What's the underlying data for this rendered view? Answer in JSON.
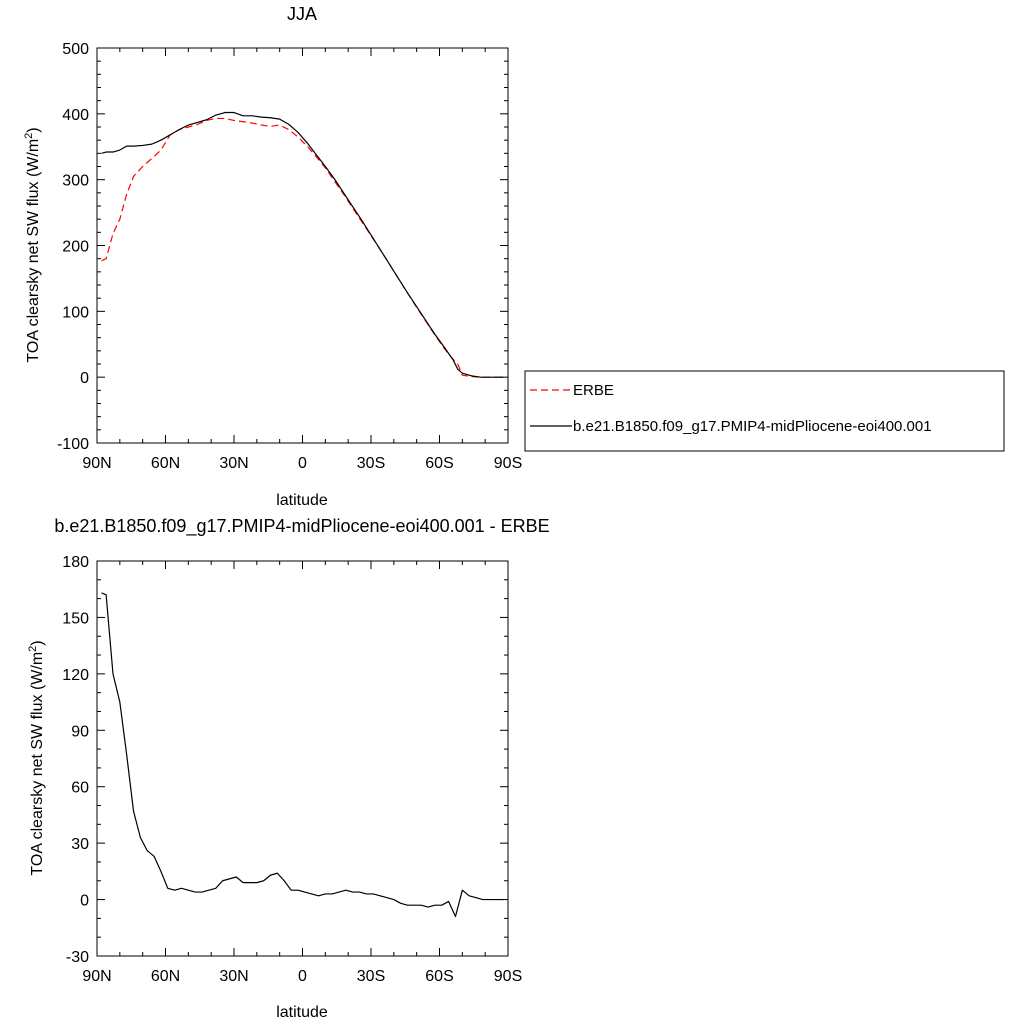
{
  "chart_data": [
    {
      "type": "line",
      "title": "JJA",
      "xlabel": "latitude",
      "ylabel": "TOA clearsky net SW flux (W/m",
      "ylabel_sup": "2",
      "ylabel_end": ")",
      "xlim": [
        90,
        -90
      ],
      "ylim": [
        -100,
        500
      ],
      "x_ticks": [
        90,
        60,
        30,
        0,
        -30,
        -60,
        -90
      ],
      "x_tick_labels": [
        "90N",
        "60N",
        "30N",
        "0",
        "30S",
        "60S",
        "90S"
      ],
      "y_ticks": [
        -100,
        0,
        100,
        200,
        300,
        400,
        500
      ],
      "y_tick_labels": [
        "-100",
        "0",
        "100",
        "200",
        "300",
        "400",
        "500"
      ],
      "grid": false,
      "legend_position": "right",
      "series": [
        {
          "name": "ERBE",
          "color": "#ff0000",
          "dash": "dashed",
          "x": [
            88,
            86,
            83,
            80,
            77,
            74,
            70,
            66,
            62,
            58,
            54,
            50,
            46,
            42,
            38,
            34,
            30,
            26,
            22,
            18,
            14,
            10,
            6,
            2,
            -2,
            -6,
            -10,
            -14,
            -18,
            -22,
            -26,
            -30,
            -34,
            -38,
            -42,
            -46,
            -50,
            -54,
            -58,
            -62,
            -66,
            -68,
            -70,
            -74,
            -78,
            -82,
            -86,
            -88
          ],
          "values": [
            177,
            180,
            218,
            240,
            278,
            305,
            320,
            332,
            345,
            368,
            376,
            380,
            384,
            390,
            393,
            393,
            390,
            388,
            386,
            383,
            381,
            383,
            376,
            365,
            351,
            335,
            318,
            298,
            278,
            257,
            236,
            215,
            194,
            172,
            150,
            128,
            106,
            85,
            64,
            44,
            27,
            20,
            3,
            1,
            0,
            0,
            0,
            0
          ]
        },
        {
          "name": "b.e21.B1850.f09_g17.PMIP4-midPliocene-eoi400.001",
          "color": "#000000",
          "dash": "solid",
          "x": [
            88,
            86,
            83,
            80,
            77,
            74,
            70,
            66,
            62,
            58,
            54,
            50,
            46,
            42,
            38,
            34,
            30,
            26,
            22,
            18,
            14,
            10,
            6,
            2,
            -2,
            -6,
            -10,
            -14,
            -18,
            -22,
            -26,
            -30,
            -34,
            -38,
            -42,
            -46,
            -50,
            -54,
            -58,
            -62,
            -66,
            -68,
            -70,
            -74,
            -78,
            -82,
            -86,
            -88
          ],
          "values": [
            340,
            342,
            342,
            345,
            351,
            351,
            352,
            354,
            360,
            368,
            376,
            383,
            387,
            391,
            398,
            402,
            402,
            397,
            397,
            395,
            394,
            392,
            384,
            372,
            356,
            338,
            320,
            301,
            280,
            259,
            238,
            216,
            194,
            172,
            150,
            128,
            107,
            86,
            65,
            46,
            26,
            12,
            6,
            2,
            0,
            0,
            0,
            0
          ]
        }
      ]
    },
    {
      "type": "line",
      "title": "b.e21.B1850.f09_g17.PMIP4-midPliocene-eoi400.001 - ERBE",
      "xlabel": "latitude",
      "ylabel": "TOA clearsky net SW flux (W/m",
      "ylabel_sup": "2",
      "ylabel_end": ")",
      "xlim": [
        90,
        -90
      ],
      "ylim": [
        -30,
        180
      ],
      "x_ticks": [
        90,
        60,
        30,
        0,
        -30,
        -60,
        -90
      ],
      "x_tick_labels": [
        "90N",
        "60N",
        "30N",
        "0",
        "30S",
        "60S",
        "90S"
      ],
      "y_ticks": [
        -30,
        0,
        30,
        60,
        90,
        120,
        150,
        180
      ],
      "y_tick_labels": [
        "-30",
        "0",
        "30",
        "60",
        "90",
        "120",
        "150",
        "180"
      ],
      "grid": false,
      "series": [
        {
          "color": "#000000",
          "dash": "solid",
          "x": [
            88,
            86,
            83,
            80,
            77,
            74,
            71,
            68,
            65,
            62,
            59,
            56,
            53,
            50,
            47,
            44,
            41,
            38,
            35,
            32,
            29,
            26,
            23,
            20,
            17,
            14,
            11,
            8,
            5,
            2,
            -1,
            -4,
            -7,
            -10,
            -13,
            -16,
            -19,
            -22,
            -25,
            -28,
            -31,
            -34,
            -37,
            -40,
            -43,
            -46,
            -49,
            -52,
            -55,
            -58,
            -61,
            -64,
            -67,
            -70,
            -73,
            -76,
            -79,
            -82,
            -85,
            -88
          ],
          "values": [
            163,
            162,
            120,
            105,
            77,
            47,
            33,
            26,
            23,
            15,
            6,
            5,
            6,
            5,
            4,
            4,
            5,
            6,
            10,
            11,
            12,
            9,
            9,
            9,
            10,
            13,
            14,
            10,
            5,
            5,
            4,
            3,
            2,
            3,
            3,
            4,
            5,
            4,
            4,
            3,
            3,
            2,
            1,
            0,
            -2,
            -3,
            -3,
            -3,
            -4,
            -3,
            -3,
            -1,
            -9,
            5,
            2,
            1,
            0,
            0,
            0,
            0
          ]
        }
      ]
    }
  ]
}
